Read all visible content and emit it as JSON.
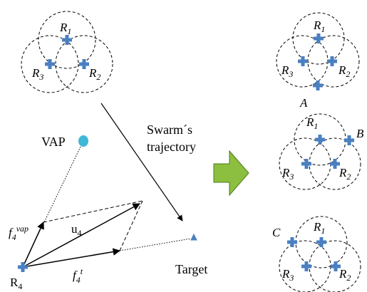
{
  "colors": {
    "marker": "#4a7fc1",
    "vap": "#3fb7d6",
    "arrow_fill": "#8cbf3f",
    "arrow_stroke": "#4e7a1f",
    "line": "#000000"
  },
  "labels": {
    "r1": "R",
    "r2": "R",
    "r3": "R",
    "sub1": "1",
    "sub2": "2",
    "sub3": "3",
    "vap": "VAP",
    "swarm_line1": "Swarm´s",
    "swarm_line2": "trajectory",
    "target": "Target",
    "r4": "R",
    "sub4": "4",
    "u4": "u",
    "f": "f",
    "vap_sup": "vap",
    "t_sup": "t",
    "config_a": "A",
    "config_b": "B",
    "config_c": "C"
  },
  "icons": {
    "robot": "plus-marker-icon",
    "vap": "circle-marker-icon",
    "target": "triangle-marker-icon",
    "transition": "right-arrow-icon"
  }
}
